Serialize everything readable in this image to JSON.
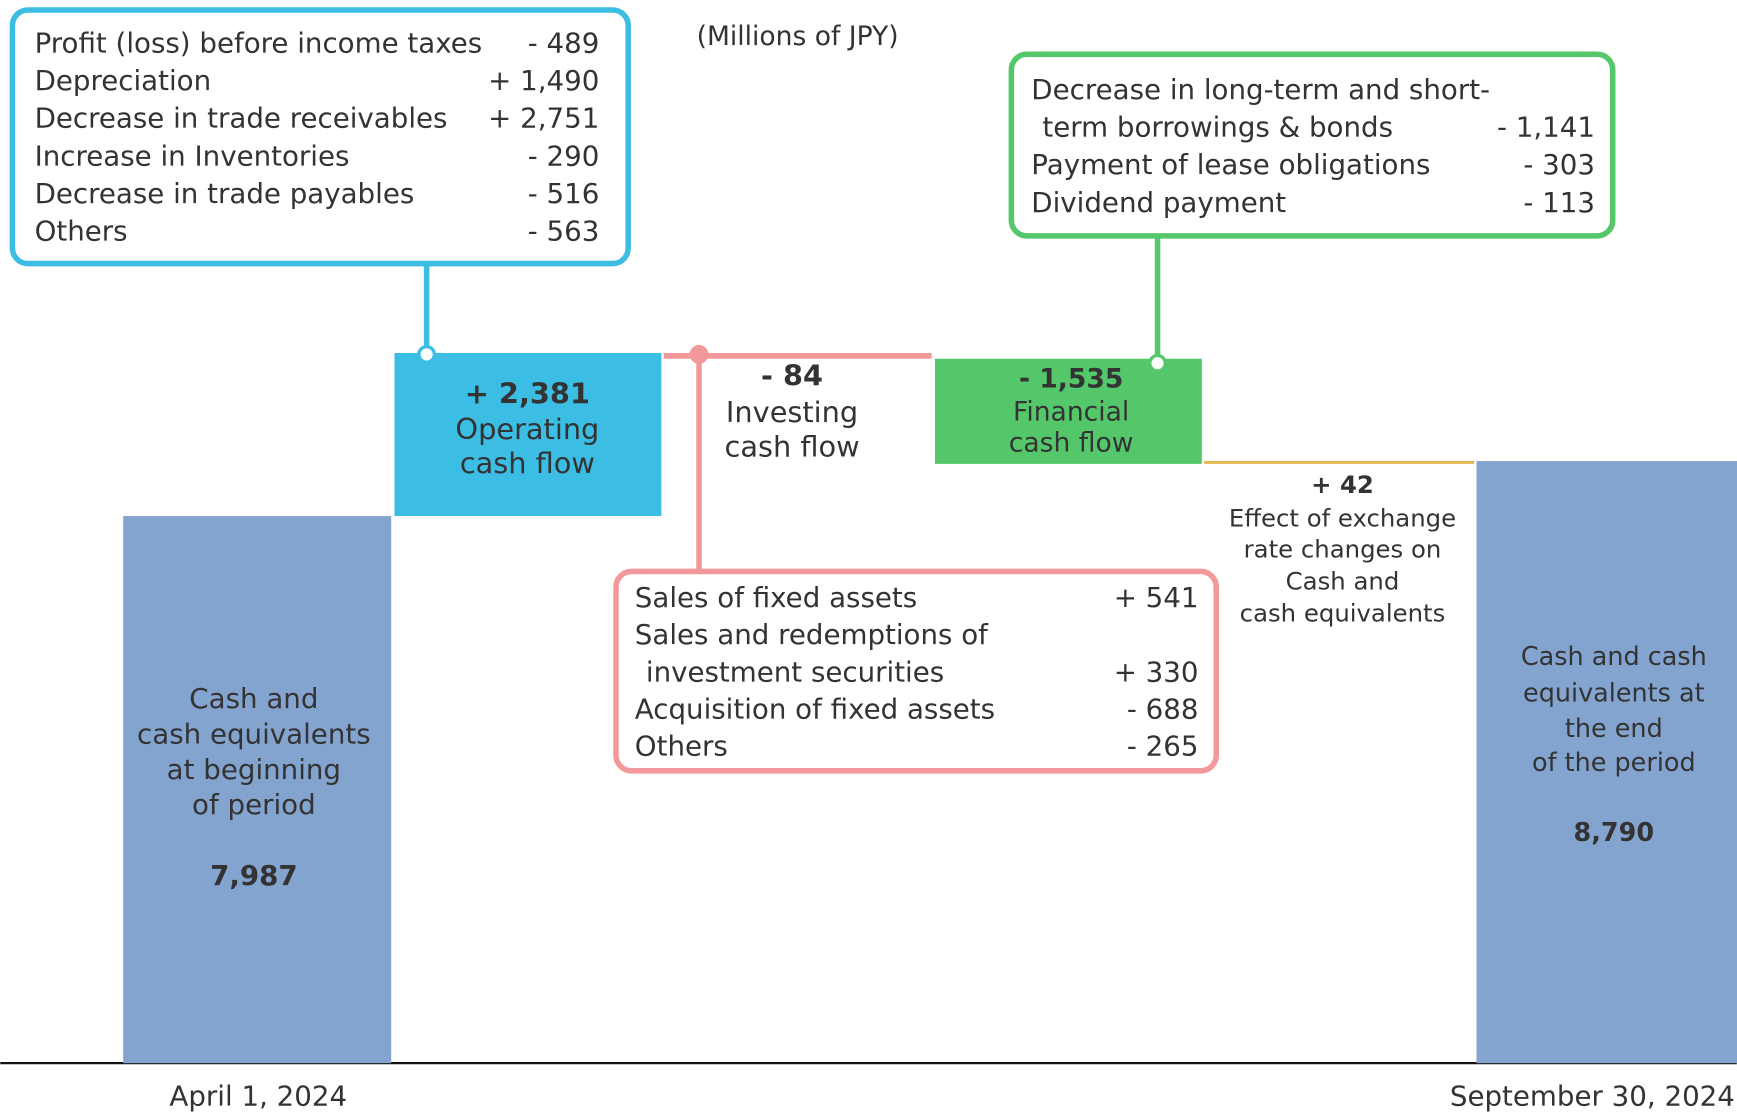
{
  "chart_data": {
    "type": "waterfall",
    "unit": "(Millions  of JPY)",
    "categories": [
      [
        "Cash and",
        "cash equivalents",
        "at beginning",
        "of period"
      ],
      [
        "Operating",
        "cash flow"
      ],
      [
        "Investing",
        "cash flow"
      ],
      [
        "Financial",
        "cash flow"
      ],
      [
        "Effect of exchange",
        "rate changes on",
        "Cash and",
        "cash equivalents"
      ],
      [
        "Cash and cash",
        "equivalents at",
        "the end",
        "of the period"
      ]
    ],
    "values": [
      7987,
      2381,
      -84,
      -1535,
      42,
      8790
    ],
    "value_labels": [
      "7,987",
      "+ 2,381",
      "- 84",
      "- 1,535",
      "+ 42",
      "8,790"
    ],
    "colors": [
      "#84a4d0",
      "#3bbde4",
      "#f4999b",
      "#55c76b",
      "#e0b850",
      "#84a4d0"
    ],
    "dates": [
      "April 1, 2024",
      "September 30, 2024"
    ],
    "details": [
      {
        "category": 1,
        "items": [
          {
            "label": [
              "Profit (loss) before income taxes"
            ],
            "value": "- 489"
          },
          {
            "label": [
              "Depreciation"
            ],
            "value": "+ 1,490"
          },
          {
            "label": [
              "Decrease in trade receivables"
            ],
            "value": "+ 2,751"
          },
          {
            "label": [
              "Increase in Inventories"
            ],
            "value": "- 290"
          },
          {
            "label": [
              "Decrease in trade payables"
            ],
            "value": "- 516"
          },
          {
            "label": [
              "Others"
            ],
            "value": "- 563"
          }
        ]
      },
      {
        "category": 2,
        "items": [
          {
            "label": [
              "Sales of fixed assets"
            ],
            "value": "+ 541"
          },
          {
            "label": [
              "Sales and redemptions of",
              "investment securities"
            ],
            "value": "+ 330"
          },
          {
            "label": [
              "Acquisition of fixed assets"
            ],
            "value": "- 688"
          },
          {
            "label": [
              "Others"
            ],
            "value": "- 265"
          }
        ]
      },
      {
        "category": 3,
        "items": [
          {
            "label": [
              "Decrease in long-term and short-",
              "term borrowings & bonds"
            ],
            "value": "- 1,141"
          },
          {
            "label": [
              "Payment of lease obligations"
            ],
            "value": "- 303"
          },
          {
            "label": [
              "Dividend payment"
            ],
            "value": "- 113"
          }
        ]
      }
    ]
  }
}
